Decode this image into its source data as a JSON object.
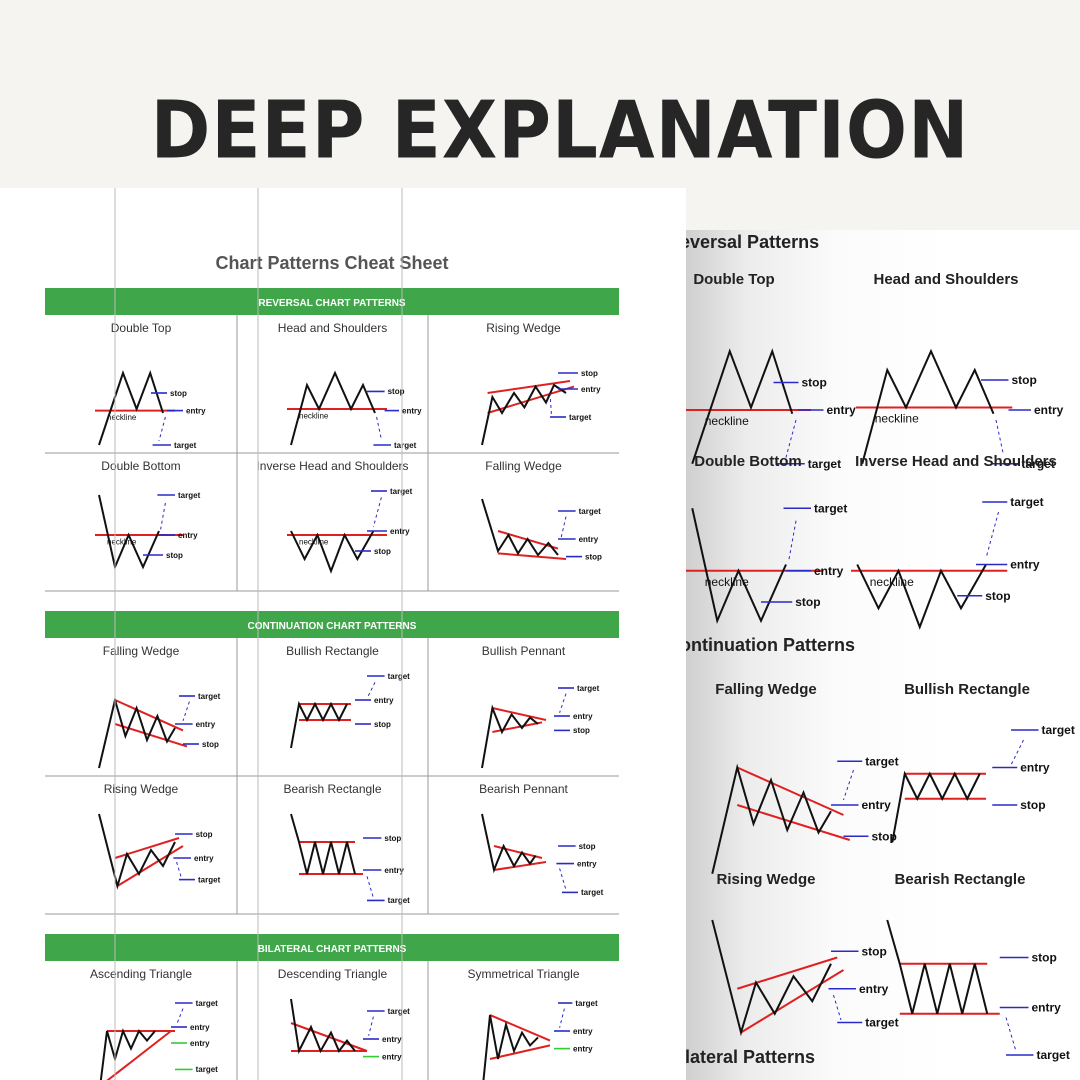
{
  "header": {
    "title": "DEEP EXPLANATION"
  },
  "sheet": {
    "title": "Chart Patterns Cheat Sheet",
    "sections": [
      {
        "label": "REVERSAL CHART PATTERNS",
        "cells": [
          {
            "name": "Double Top",
            "type": "double-top",
            "labels": [
              "stop",
              "neckline",
              "entry",
              "target"
            ]
          },
          {
            "name": "Head and Shoulders",
            "type": "head-shoulders",
            "labels": [
              "stop",
              "neckline",
              "entry",
              "target"
            ]
          },
          {
            "name": "Rising Wedge",
            "type": "rising-wedge-rev",
            "labels": [
              "stop",
              "entry",
              "target"
            ]
          },
          {
            "name": "Double Bottom",
            "type": "double-bottom",
            "labels": [
              "target",
              "neckline",
              "entry",
              "stop"
            ]
          },
          {
            "name": "Inverse Head and Shoulders",
            "type": "inv-head-shoulders",
            "labels": [
              "target",
              "neckline",
              "entry",
              "stop"
            ]
          },
          {
            "name": "Falling Wedge",
            "type": "falling-wedge-rev",
            "labels": [
              "target",
              "entry",
              "stop"
            ]
          }
        ]
      },
      {
        "label": "CONTINUATION CHART PATTERNS",
        "cells": [
          {
            "name": "Falling Wedge",
            "type": "falling-wedge-cont",
            "labels": [
              "target",
              "entry",
              "stop"
            ]
          },
          {
            "name": "Bullish Rectangle",
            "type": "bull-rect",
            "labels": [
              "target",
              "entry",
              "stop"
            ]
          },
          {
            "name": "Bullish Pennant",
            "type": "bull-pennant",
            "labels": [
              "target",
              "entry",
              "stop"
            ]
          },
          {
            "name": "Rising Wedge",
            "type": "rising-wedge-cont",
            "labels": [
              "stop",
              "entry",
              "target"
            ]
          },
          {
            "name": "Bearish Rectangle",
            "type": "bear-rect",
            "labels": [
              "stop",
              "entry",
              "target"
            ]
          },
          {
            "name": "Bearish Pennant",
            "type": "bear-pennant",
            "labels": [
              "stop",
              "entry",
              "target"
            ]
          }
        ]
      },
      {
        "label": "BILATERAL CHART PATTERNS",
        "cells": [
          {
            "name": "Ascending Triangle",
            "type": "asc-tri",
            "labels": [
              "target",
              "entry",
              "entry",
              "target"
            ]
          },
          {
            "name": "Descending Triangle",
            "type": "desc-tri",
            "labels": [
              "target",
              "entry",
              "entry"
            ]
          },
          {
            "name": "Symmetrical Triangle",
            "type": "sym-tri",
            "labels": [
              "target",
              "entry",
              "entry"
            ]
          }
        ]
      }
    ]
  },
  "zoom": {
    "headings": [
      "eversal Patterns",
      "ontinuation Patterns",
      "ilateral Patterns"
    ],
    "cells": [
      {
        "name": "Double Top",
        "type": "double-top",
        "labels": [
          "stop",
          "neckline",
          "entry",
          "target"
        ]
      },
      {
        "name": "Head and Shoulders",
        "type": "head-shoulders",
        "labels": [
          "stop",
          "neckline",
          "entry",
          "target"
        ]
      },
      {
        "name": "Double Bottom",
        "type": "double-bottom",
        "labels": [
          "target",
          "neckline",
          "entry",
          "stop"
        ]
      },
      {
        "name": "Inverse Head and Shoulders",
        "type": "inv-head-shoulders",
        "labels": [
          "target",
          "neckline",
          "entry",
          "stop"
        ]
      },
      {
        "name": "Falling Wedge",
        "type": "falling-wedge-cont",
        "labels": [
          "target",
          "entry",
          "stop"
        ]
      },
      {
        "name": "Bullish Rectangle",
        "type": "bull-rect",
        "labels": [
          "target",
          "entry",
          "stop"
        ]
      },
      {
        "name": "Rising Wedge",
        "type": "rising-wedge-cont",
        "labels": [
          "stop",
          "entry",
          "target"
        ]
      },
      {
        "name": "Bearish Rectangle",
        "type": "bear-rect",
        "labels": [
          "stop",
          "entry",
          "target"
        ]
      }
    ]
  },
  "colors": {
    "section_bar": "#3fa74a",
    "trend_line": "#e02020",
    "level_line": "#2a2ac8",
    "price_line": "#111111",
    "alt_level": "#33cc33",
    "grid": "#9a9a9a",
    "title_text": "#555555"
  }
}
